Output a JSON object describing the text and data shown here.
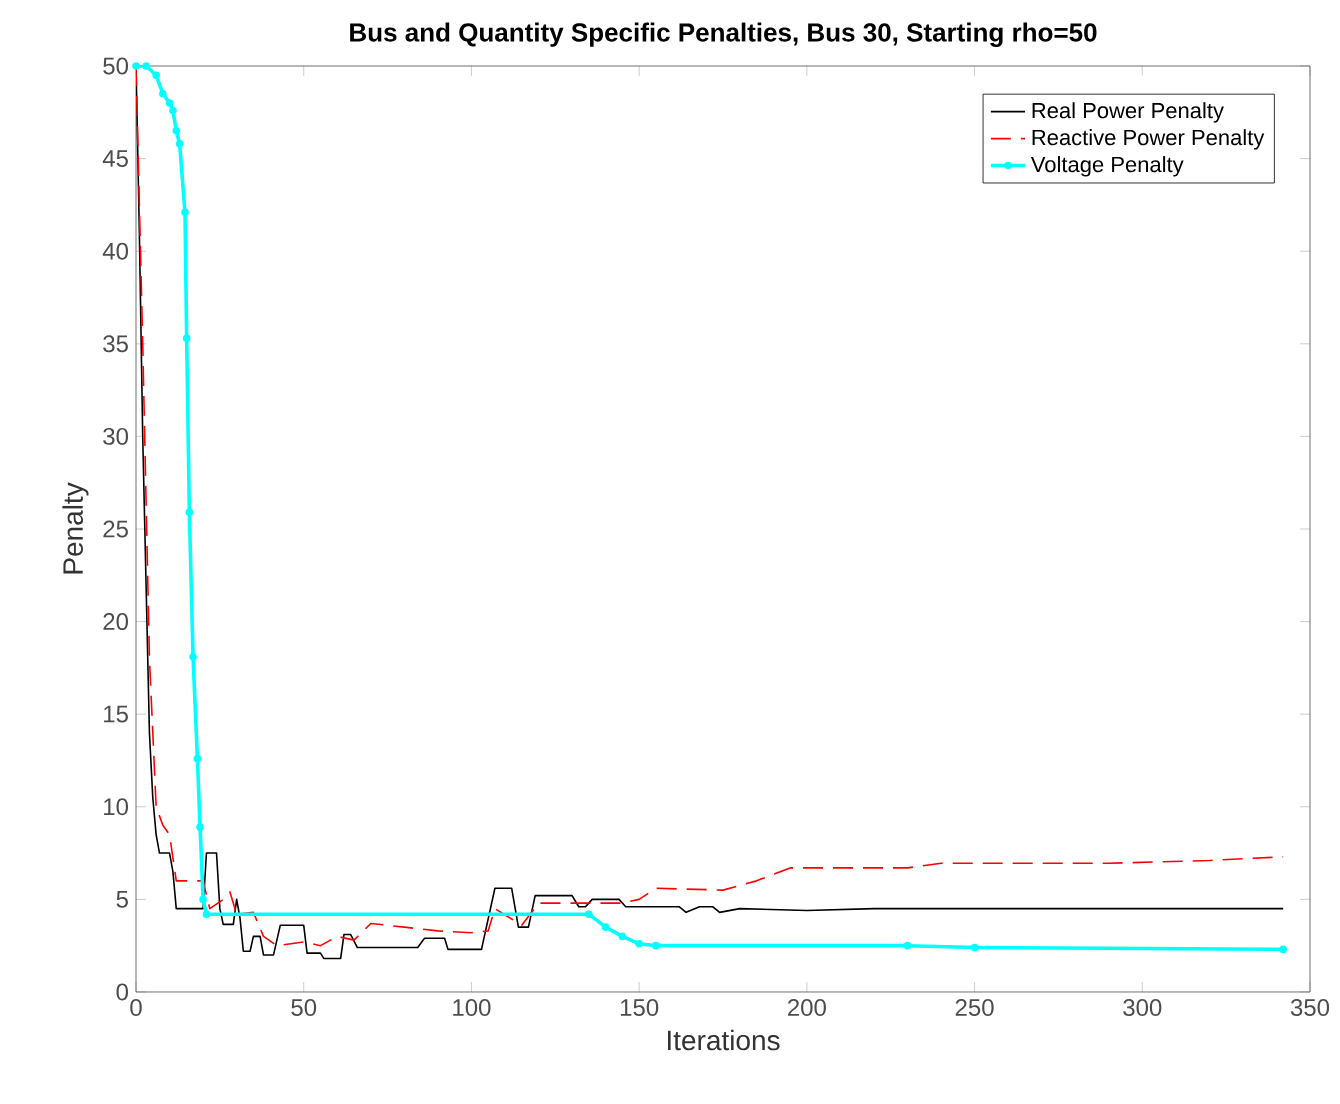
{
  "chart_data": {
    "type": "line",
    "title": "Bus and Quantity Specific Penalties, Bus 30, Starting rho=50",
    "xlabel": "Iterations",
    "ylabel": "Penalty",
    "xlim": [
      0,
      350
    ],
    "ylim": [
      0,
      50
    ],
    "xticks": [
      0,
      50,
      100,
      150,
      200,
      250,
      300,
      350
    ],
    "yticks": [
      0,
      5,
      10,
      15,
      20,
      25,
      30,
      35,
      40,
      45,
      50
    ],
    "grid": false,
    "legend": "top right",
    "series": [
      {
        "name": "Real Power Penalty",
        "color": "#000000",
        "line_style": "solid",
        "marker": "none",
        "x": [
          0,
          1,
          2,
          3,
          4,
          5,
          6,
          7,
          10,
          11,
          12,
          20,
          21,
          24,
          25,
          26,
          29,
          30,
          31,
          32,
          34,
          35,
          37,
          38,
          41,
          43,
          50,
          51,
          55,
          56,
          61,
          62,
          64,
          66,
          84,
          86,
          92,
          93,
          103,
          107,
          112,
          114,
          117,
          119,
          130,
          132,
          134,
          136,
          144,
          146,
          162,
          164,
          168,
          172,
          174,
          180,
          200,
          220,
          230,
          342
        ],
        "values": [
          50,
          41,
          30,
          22,
          14,
          10.5,
          8.5,
          7.5,
          7.5,
          6.5,
          4.5,
          4.5,
          7.5,
          7.5,
          4.5,
          3.65,
          3.65,
          5,
          4,
          2.2,
          2.2,
          3,
          3,
          2,
          2,
          3.6,
          3.6,
          2.1,
          2.1,
          1.8,
          1.8,
          3.1,
          3.1,
          2.4,
          2.4,
          2.9,
          2.9,
          2.3,
          2.3,
          5.6,
          5.6,
          3.5,
          3.5,
          5.2,
          5.2,
          4.6,
          4.6,
          5,
          5,
          4.6,
          4.6,
          4.3,
          4.6,
          4.6,
          4.3,
          4.5,
          4.4,
          4.5,
          4.5,
          4.5
        ]
      },
      {
        "name": "Reactive Power Penalty",
        "color": "#ff0000",
        "line_style": "dashed",
        "marker": "none",
        "x": [
          0,
          2,
          4,
          6,
          8,
          10,
          12,
          20,
          22,
          26,
          28,
          30,
          35,
          38,
          42,
          50,
          55,
          60,
          65,
          70,
          80,
          90,
          100,
          105,
          107,
          115,
          120,
          145,
          150,
          155,
          175,
          185,
          195,
          230,
          240,
          290,
          320,
          342
        ],
        "values": [
          50,
          35,
          18,
          10,
          9,
          8.5,
          6,
          6,
          4.5,
          5,
          5.4,
          4.2,
          4.3,
          3,
          2.5,
          2.7,
          2.5,
          3,
          2.8,
          3.7,
          3.5,
          3.3,
          3.2,
          3.3,
          4.5,
          3.6,
          4.8,
          4.8,
          5,
          5.6,
          5.5,
          6,
          6.7,
          6.7,
          6.95,
          6.95,
          7.1,
          7.3
        ]
      },
      {
        "name": "Voltage Penalty",
        "color": "#00ffff",
        "line_style": "solid",
        "marker": "circle",
        "x": [
          0,
          3,
          6,
          8,
          10,
          11,
          12,
          13,
          14.6,
          15.1,
          15.9,
          17,
          18.3,
          19.1,
          20,
          21,
          135,
          140,
          145,
          150,
          155,
          230,
          250,
          342
        ],
        "values": [
          50,
          50,
          49.5,
          48.5,
          48,
          47.6,
          46.5,
          45.8,
          42.1,
          35.3,
          25.9,
          18.1,
          12.6,
          8.9,
          5,
          4.2,
          4.2,
          3.5,
          3,
          2.6,
          2.5,
          2.5,
          2.4,
          2.3
        ]
      }
    ]
  }
}
